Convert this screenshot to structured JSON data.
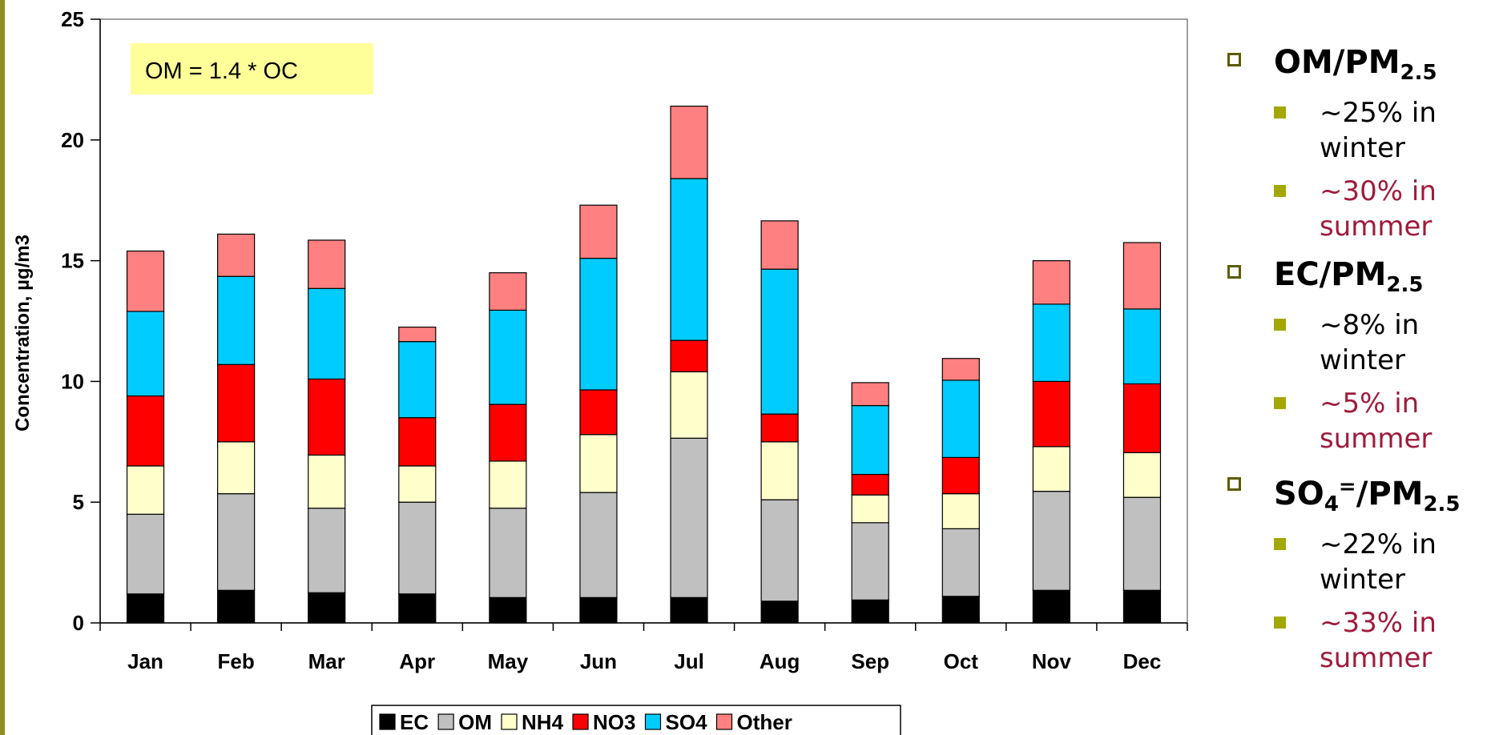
{
  "chart_data": {
    "type": "bar",
    "stacked": true,
    "categories": [
      "Jan",
      "Feb",
      "Mar",
      "Apr",
      "May",
      "Jun",
      "Jul",
      "Aug",
      "Sep",
      "Oct",
      "Nov",
      "Dec"
    ],
    "series": [
      {
        "name": "EC",
        "color": "#000000",
        "values": [
          1.2,
          1.35,
          1.25,
          1.2,
          1.05,
          1.05,
          1.05,
          0.9,
          0.95,
          1.1,
          1.35,
          1.35
        ]
      },
      {
        "name": "OM",
        "color": "#c0c0c0",
        "values": [
          3.3,
          4.0,
          3.5,
          3.8,
          3.7,
          4.35,
          6.6,
          4.2,
          3.2,
          2.8,
          4.1,
          3.85
        ]
      },
      {
        "name": "NH4",
        "color": "#ffffcc",
        "values": [
          2.0,
          2.15,
          2.2,
          1.5,
          1.95,
          2.4,
          2.75,
          2.4,
          1.15,
          1.45,
          1.85,
          1.85
        ]
      },
      {
        "name": "NO3",
        "color": "#ff0000",
        "values": [
          2.9,
          3.2,
          3.15,
          2.0,
          2.35,
          1.85,
          1.3,
          1.15,
          0.85,
          1.5,
          2.7,
          2.85
        ]
      },
      {
        "name": "SO4",
        "color": "#00ccff",
        "values": [
          3.5,
          3.65,
          3.75,
          3.15,
          3.9,
          5.45,
          6.7,
          6.0,
          2.85,
          3.2,
          3.2,
          3.1
        ]
      },
      {
        "name": "Other",
        "color": "#ff8080",
        "values": [
          2.5,
          1.75,
          2.0,
          0.6,
          1.55,
          2.2,
          3.0,
          2.0,
          0.95,
          0.9,
          1.8,
          2.75
        ]
      }
    ],
    "xlabel": "",
    "ylabel": "Concentration, µg/m3",
    "ylim": [
      0,
      25
    ],
    "yticks": [
      0,
      5,
      10,
      15,
      20,
      25
    ],
    "annotation": "OM = 1.4 * OC",
    "legend_position": "bottom",
    "grid": false
  },
  "bullets": [
    {
      "head": {
        "base": "OM/PM",
        "sub": "2.5"
      },
      "items": [
        {
          "text": "~25% in winter",
          "season": "winter"
        },
        {
          "text": "~30% in summer",
          "season": "summer"
        }
      ]
    },
    {
      "head": {
        "base": "EC/PM",
        "sub": "2.5"
      },
      "items": [
        {
          "text": "~8% in winter",
          "season": "winter"
        },
        {
          "text": "~5% in summer",
          "season": "summer"
        }
      ]
    },
    {
      "head": {
        "base": "SO",
        "sub1": "4",
        "sup": "=",
        "mid": "/PM",
        "sub": "2.5"
      },
      "items": [
        {
          "text": "~22% in winter",
          "season": "winter"
        },
        {
          "text": "~33% in summer",
          "season": "summer"
        }
      ]
    }
  ]
}
